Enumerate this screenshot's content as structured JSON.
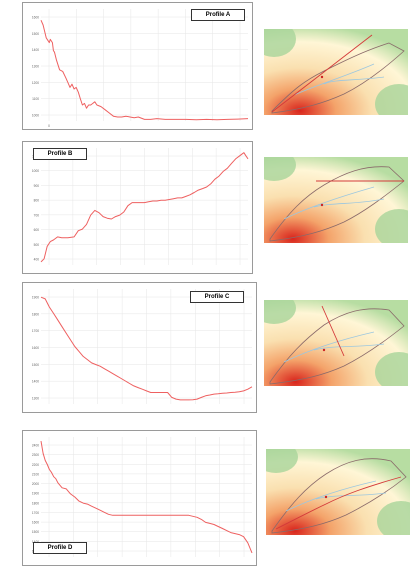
{
  "profiles": [
    {
      "title": "Profile A",
      "chart_data": {
        "type": "line",
        "title": "Profile A",
        "y_ticks": [
          "1600",
          "1500",
          "1400",
          "1300",
          "1200",
          "1100",
          "1000"
        ],
        "ylim": [
          960,
          1660
        ],
        "xlim": [
          0,
          1000
        ],
        "x_ticks": [
          "0",
          "",
          "",
          "",
          "",
          "",
          "",
          ""
        ],
        "x": [
          0,
          10,
          25,
          40,
          45,
          55,
          60,
          65,
          75,
          90,
          105,
          120,
          130,
          140,
          150,
          160,
          170,
          180,
          190,
          200,
          210,
          220,
          230,
          240,
          250,
          260,
          270,
          290,
          310,
          330,
          350,
          370,
          390,
          410,
          430,
          450,
          470,
          500,
          530,
          560,
          600,
          650,
          700,
          750,
          800,
          850,
          900,
          950,
          1000
        ],
        "y": [
          1590,
          1560,
          1480,
          1450,
          1470,
          1450,
          1400,
          1390,
          1340,
          1280,
          1270,
          1230,
          1200,
          1170,
          1190,
          1160,
          1170,
          1140,
          1100,
          1060,
          1070,
          1040,
          1060,
          1060,
          1070,
          1080,
          1060,
          1050,
          1030,
          1010,
          990,
          985,
          985,
          990,
          985,
          980,
          985,
          970,
          970,
          975,
          970,
          970,
          970,
          968,
          970,
          968,
          970,
          972,
          975
        ],
        "line_color": "#ee6060"
      }
    },
    {
      "title": "Profile B",
      "chart_data": {
        "type": "line",
        "title": "Profile B",
        "y_ticks": [
          "1100",
          "1000",
          "900",
          "800",
          "700",
          "600",
          "500",
          "400"
        ],
        "ylim": [
          380,
          1130
        ],
        "xlim": [
          0,
          1000
        ],
        "x_ticks": [
          "",
          "",
          "",
          "",
          "",
          "",
          "",
          "",
          ""
        ],
        "x": [
          0,
          15,
          30,
          45,
          60,
          80,
          100,
          130,
          160,
          180,
          200,
          220,
          240,
          260,
          280,
          300,
          320,
          340,
          360,
          380,
          400,
          420,
          440,
          460,
          480,
          500,
          520,
          540,
          560,
          580,
          600,
          620,
          640,
          660,
          680,
          700,
          720,
          740,
          760,
          780,
          800,
          820,
          840,
          860,
          880,
          900,
          920,
          940,
          960,
          970,
          980,
          990,
          1000
        ],
        "y": [
          400,
          420,
          500,
          530,
          540,
          560,
          555,
          555,
          560,
          600,
          610,
          640,
          700,
          730,
          715,
          690,
          680,
          675,
          690,
          700,
          720,
          760,
          780,
          780,
          780,
          780,
          785,
          790,
          790,
          795,
          795,
          800,
          805,
          810,
          810,
          820,
          830,
          845,
          860,
          870,
          880,
          900,
          930,
          950,
          980,
          1000,
          1030,
          1060,
          1080,
          1090,
          1100,
          1080,
          1060
        ],
        "line_color": "#ee6060"
      }
    },
    {
      "title": "Profile C",
      "chart_data": {
        "type": "line",
        "title": "Profile C",
        "y_ticks": [
          "1900",
          "1800",
          "1700",
          "1600",
          "1500",
          "1400",
          "1300"
        ],
        "ylim": [
          1230,
          1930
        ],
        "xlim": [
          0,
          1000
        ],
        "x_ticks": [
          "",
          "",
          "",
          "",
          "",
          "",
          "",
          "",
          ""
        ],
        "x": [
          0,
          20,
          40,
          60,
          80,
          100,
          120,
          140,
          160,
          180,
          200,
          220,
          240,
          260,
          280,
          300,
          320,
          340,
          360,
          380,
          400,
          420,
          440,
          460,
          480,
          500,
          520,
          540,
          560,
          580,
          600,
          620,
          640,
          660,
          680,
          700,
          720,
          740,
          760,
          780,
          800,
          820,
          840,
          860,
          880,
          900,
          920,
          940,
          960,
          980,
          1000
        ],
        "y": [
          1880,
          1870,
          1820,
          1780,
          1740,
          1700,
          1660,
          1620,
          1580,
          1550,
          1520,
          1500,
          1480,
          1470,
          1460,
          1445,
          1430,
          1415,
          1400,
          1385,
          1370,
          1355,
          1340,
          1330,
          1320,
          1310,
          1300,
          1300,
          1300,
          1300,
          1300,
          1270,
          1260,
          1255,
          1255,
          1255,
          1256,
          1260,
          1270,
          1280,
          1285,
          1290,
          1292,
          1295,
          1297,
          1300,
          1302,
          1305,
          1310,
          1320,
          1335
        ],
        "line_color": "#ee6060"
      }
    },
    {
      "title": "Profile D",
      "chart_data": {
        "type": "line",
        "title": "Profile D",
        "y_ticks": [
          "2400",
          "2300",
          "2200",
          "2100",
          "2000",
          "1900",
          "1800",
          "1700",
          "1600",
          "1500",
          "1400",
          "1300"
        ],
        "ylim": [
          1280,
          2460
        ],
        "xlim": [
          0,
          1000
        ],
        "x_ticks": [
          "",
          "",
          "",
          "",
          "",
          "",
          "",
          "",
          ""
        ],
        "x": [
          0,
          10,
          20,
          30,
          40,
          50,
          60,
          70,
          80,
          100,
          120,
          140,
          160,
          180,
          200,
          220,
          240,
          260,
          280,
          300,
          320,
          340,
          360,
          380,
          400,
          420,
          440,
          460,
          480,
          500,
          520,
          540,
          560,
          580,
          600,
          620,
          640,
          660,
          680,
          700,
          720,
          740,
          760,
          780,
          800,
          820,
          840,
          860,
          880,
          900,
          920,
          940,
          960,
          980,
          1000
        ],
        "y": [
          2420,
          2300,
          2230,
          2190,
          2140,
          2110,
          2070,
          2050,
          2010,
          1960,
          1950,
          1900,
          1870,
          1830,
          1810,
          1800,
          1780,
          1760,
          1740,
          1720,
          1700,
          1690,
          1690,
          1690,
          1690,
          1690,
          1690,
          1690,
          1690,
          1690,
          1690,
          1690,
          1690,
          1690,
          1690,
          1690,
          1690,
          1690,
          1690,
          1690,
          1680,
          1670,
          1650,
          1620,
          1610,
          1600,
          1580,
          1560,
          1540,
          1520,
          1510,
          1500,
          1480,
          1420,
          1320
        ],
        "line_color": "#ee6060"
      }
    }
  ],
  "colors": {
    "frame": "#9a9a9a",
    "grid": "#e6e6e6",
    "line": "#ee6060",
    "map_bg": "#f5d9a8"
  }
}
